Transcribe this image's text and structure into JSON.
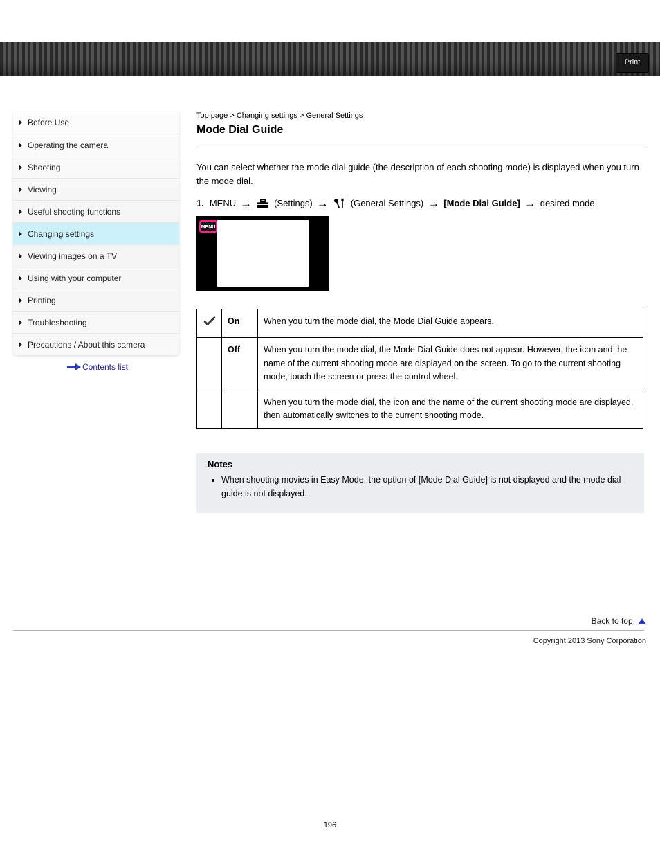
{
  "topbar": {
    "print_label": "Print"
  },
  "sidebar": {
    "items": [
      {
        "label": "Before Use"
      },
      {
        "label": "Operating the camera"
      },
      {
        "label": "Shooting"
      },
      {
        "label": "Viewing"
      },
      {
        "label": "Useful shooting functions"
      },
      {
        "label": "Changing settings"
      },
      {
        "label": "Viewing images on a TV"
      },
      {
        "label": "Using with your computer"
      },
      {
        "label": "Printing"
      },
      {
        "label": "Troubleshooting"
      },
      {
        "label": "Precautions / About this camera"
      }
    ],
    "active_index": 5,
    "back_label": "Contents list"
  },
  "main": {
    "top_link": "Top page",
    "breadcrumb_sep": ">",
    "section_title": "Changing settings",
    "section_link": "General Settings",
    "subsection_title": "Mode Dial Guide",
    "intro": "You can select whether the mode dial guide (the description of each shooting mode) is displayed when you turn the mode dial.",
    "step_prefix": "1.",
    "step_text_menu": "MENU",
    "step_text_settings": "(Settings)",
    "step_text_general": "(General Settings)",
    "step_text_mdg": "[Mode Dial Guide]",
    "step_text_mode": "desired mode",
    "menu_badge": "MENU",
    "options": [
      {
        "checked": true,
        "label": "On",
        "desc": "When you turn the mode dial, the Mode Dial Guide appears."
      },
      {
        "checked": false,
        "label": "Off",
        "desc": "When you turn the mode dial, the Mode Dial Guide does not appear. However, the icon and the name of the current shooting mode are displayed on the screen. To go to the current shooting mode, touch the screen or press the control wheel."
      },
      {
        "checked": false,
        "label": "",
        "desc": "When you turn the mode dial, the icon and the name of the current shooting mode are displayed, then automatically switches to the current shooting mode."
      }
    ],
    "notes_title": "Notes",
    "notes": [
      "When shooting movies in Easy Mode, the option of [Mode Dial Guide] is not displayed and the mode dial guide is not displayed."
    ],
    "back_to_top": "Back to top"
  },
  "footer": {
    "copyright": "Copyright 2013 Sony Corporation"
  },
  "page_number": "196",
  "colors": {
    "active_sidebar_bg": "#ccf1f9",
    "notes_bg": "#eaeef1",
    "menu_border": "#ff1f8f",
    "link_blue": "#2a3ab8"
  }
}
